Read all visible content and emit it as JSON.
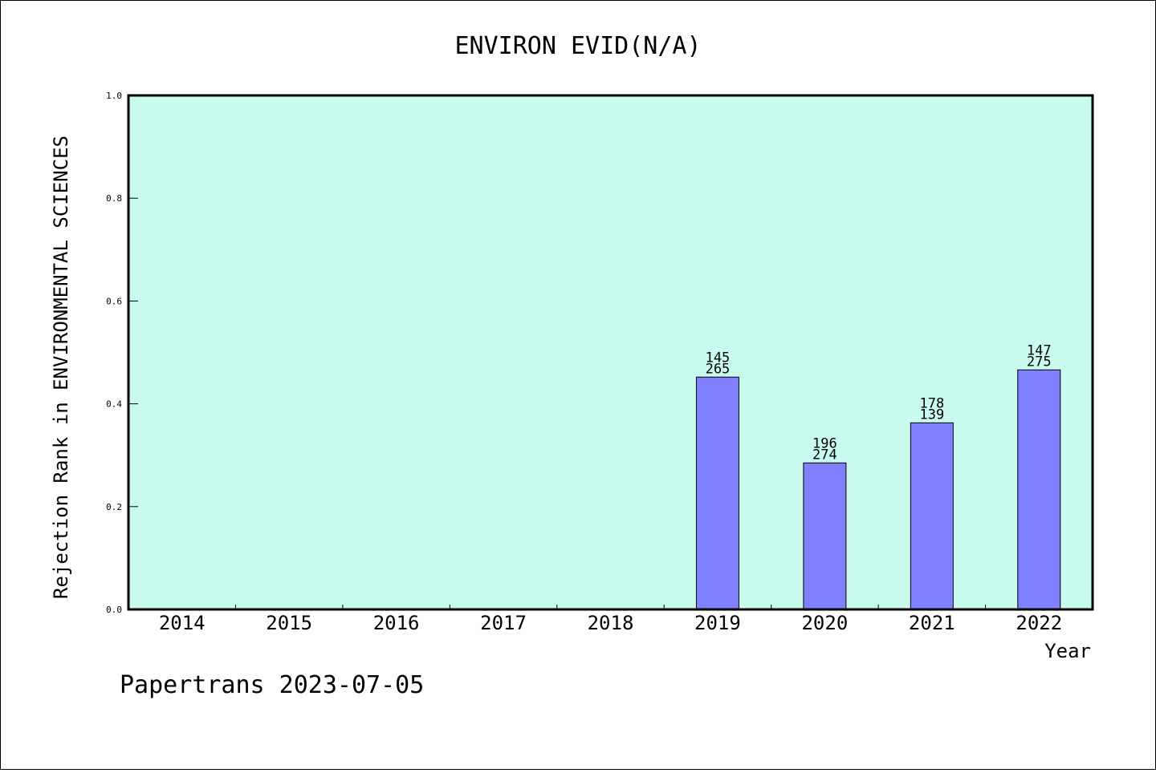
{
  "chart_data": {
    "type": "bar",
    "title": "ENVIRON EVID(N/A)",
    "xlabel": "Year",
    "ylabel": "Rejection Rank in ENVIRONMENTAL SCIENCES",
    "ylim": [
      0.0,
      1.0
    ],
    "yticks": [
      "0.0",
      "0.2",
      "0.4",
      "0.6",
      "0.8",
      "1.0"
    ],
    "categories": [
      "2014",
      "2015",
      "2016",
      "2017",
      "2018",
      "2019",
      "2020",
      "2021",
      "2022"
    ],
    "values": [
      null,
      null,
      null,
      null,
      null,
      0.452,
      0.285,
      0.363,
      0.466
    ],
    "bar_labels": [
      null,
      null,
      null,
      null,
      null,
      [
        "145",
        "265"
      ],
      [
        "196",
        "274"
      ],
      [
        "178",
        "139"
      ],
      [
        "147",
        "275"
      ]
    ],
    "grid": false,
    "colors": {
      "plot_background": "#c8fbee",
      "bar_fill": "#8080ff",
      "bar_stroke": "#000000"
    }
  },
  "footer": {
    "text": "Papertrans 2023-07-05"
  }
}
